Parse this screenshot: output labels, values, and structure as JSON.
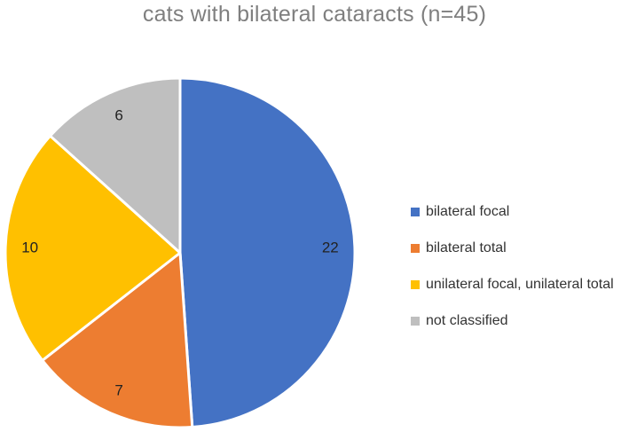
{
  "chart_data": {
    "type": "pie",
    "title": "cats with bilateral cataracts (n=45)",
    "categories": [
      "bilateral focal",
      "bilateral total",
      "unilateral focal, unilateral total",
      "not classified"
    ],
    "values": [
      22,
      7,
      10,
      6
    ],
    "colors": [
      "#4472C4",
      "#ED7D31",
      "#FFC000",
      "#BFBFBF"
    ],
    "start_angle_deg": 0,
    "direction": "clockwise",
    "data_labels": true,
    "legend_position": "right"
  }
}
